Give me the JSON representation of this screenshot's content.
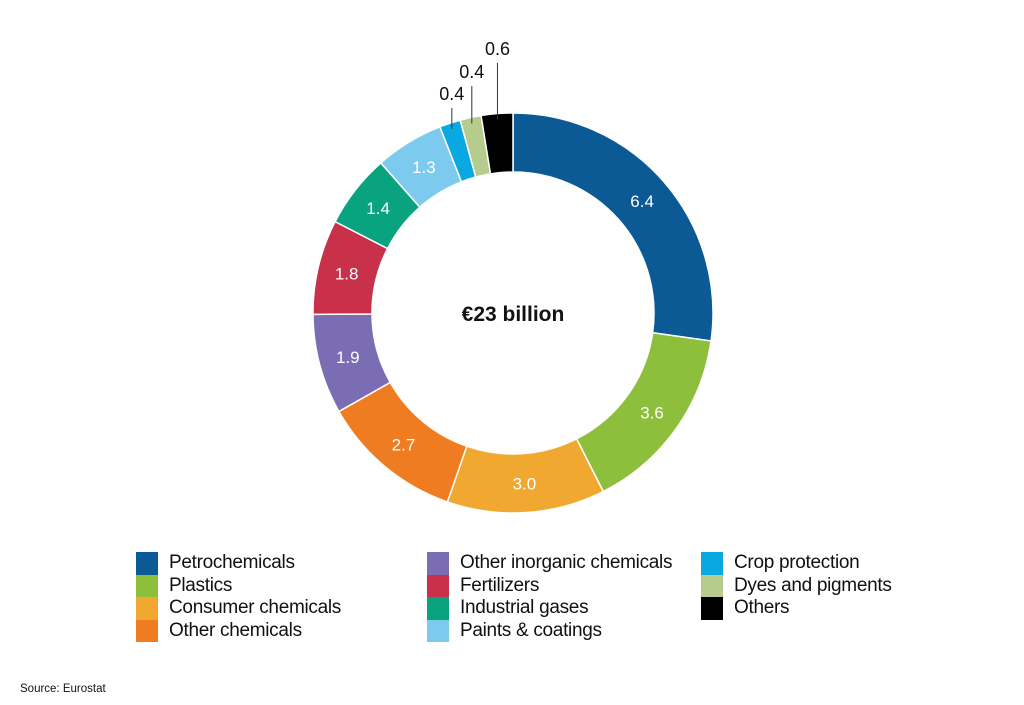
{
  "chart_data": {
    "type": "pie",
    "donut": true,
    "center_label": "€23 billion",
    "start": "top",
    "direction": "clockwise",
    "categories": [
      "Petrochemicals",
      "Plastics",
      "Consumer chemicals",
      "Other chemicals",
      "Other inorganic chemicals",
      "Fertilizers",
      "Industrial gases",
      "Paints & coatings",
      "Crop protection",
      "Dyes and pigments",
      "Others"
    ],
    "values": [
      6.4,
      3.6,
      3.0,
      2.7,
      1.9,
      1.8,
      1.4,
      1.3,
      0.4,
      0.4,
      0.6
    ],
    "labels": [
      "6.4",
      "3.6",
      "3.0",
      "2.7",
      "1.9",
      "1.8",
      "1.4",
      "1.3",
      "0.4",
      "0.4",
      "0.6"
    ],
    "colors": [
      "#0b5a96",
      "#8dbf3d",
      "#f0a830",
      "#f07c22",
      "#7a6db3",
      "#c9304a",
      "#0aa37f",
      "#7ccbee",
      "#0aa8e0",
      "#b5cc8e",
      "#000000"
    ],
    "legend_placement": "bottom",
    "legend_columns": [
      [
        0,
        1,
        2,
        3
      ],
      [
        4,
        5,
        6,
        7
      ],
      [
        8,
        9,
        10
      ]
    ]
  },
  "source": "Source: Eurostat"
}
